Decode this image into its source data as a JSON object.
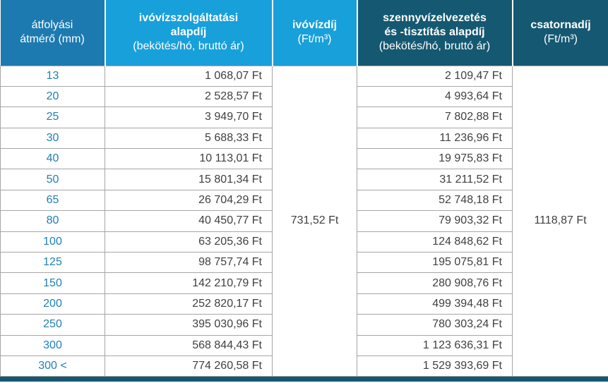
{
  "table": {
    "header": {
      "diameter": {
        "line1": "átfolyási",
        "line2": "átmérő (mm)"
      },
      "water_base": {
        "title1": "ivóvízszolgáltatási",
        "title2": "alapdíj",
        "subtitle": "(bekötés/hó, bruttó ár)"
      },
      "water_price": {
        "title1": "ivóvízdíj",
        "subtitle": "(Ft/m³)"
      },
      "sewer_base": {
        "title1": "szennyvízelvezetés",
        "title2": "és -tisztítás alapdíj",
        "subtitle": "(bekötés/hó, bruttó ár)"
      },
      "sewer_price": {
        "title1": "csatornadíj",
        "subtitle": "(Ft/m³)"
      }
    }
  },
  "colors": {
    "header_medium_blue": "#1c7ab0",
    "header_bright_blue": "#18a0db",
    "header_dark_blue": "#155871",
    "diameter_text": "#1f7fb6",
    "value_text": "#3f3f3f",
    "cell_border": "#a6a6a6",
    "bottom_bar": "#155871"
  },
  "chart_data": {
    "type": "table",
    "columns": [
      "átfolyási átmérő (mm)",
      "ivóvízszolgáltatási alapdíj (bekötés/hó, bruttó ár)",
      "ivóvízdíj (Ft/m³)",
      "szennyvízelvezetés és -tisztítás alapdíj (bekötés/hó, bruttó ár)",
      "csatornadíj (Ft/m³)"
    ],
    "diameter_mm": [
      "13",
      "20",
      "25",
      "30",
      "40",
      "50",
      "65",
      "80",
      "100",
      "125",
      "150",
      "200",
      "250",
      "300",
      "300 <"
    ],
    "water_base_fee": [
      "1 068,07 Ft",
      "2 528,57 Ft",
      "3 949,70 Ft",
      "5 688,33 Ft",
      "10 113,01 Ft",
      "15 801,34 Ft",
      "26 704,29 Ft",
      "40 450,77 Ft",
      "63 205,36 Ft",
      "98 757,74 Ft",
      "142 210,79 Ft",
      "252 820,17 Ft",
      "395 030,96 Ft",
      "568 844,43 Ft",
      "774 260,58 Ft"
    ],
    "sewer_base_fee": [
      "2 109,47 Ft",
      "4 993,64 Ft",
      "7 802,88 Ft",
      "11 236,96 Ft",
      "19 975,83 Ft",
      "31 211,52 Ft",
      "52 748,18 Ft",
      "79 903,32 Ft",
      "124 848,62 Ft",
      "195 075,81 Ft",
      "280 908,76 Ft",
      "499 394,48 Ft",
      "780 303,24 Ft",
      "1 123 636,31 Ft",
      "1 529 393,69 Ft"
    ],
    "water_unit_price": "731,52 Ft",
    "sewer_unit_price": "1118,87 Ft",
    "merged_cells_note": "ivóvízdíj and csatornadíj values are single cells spanning all 15 rows"
  }
}
